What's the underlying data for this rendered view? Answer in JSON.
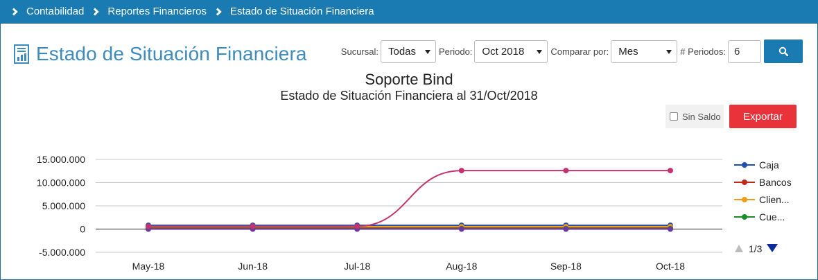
{
  "breadcrumb": [
    "Contabilidad",
    "Reportes Financieros",
    "Estado de Situación Financiera"
  ],
  "page": {
    "title": "Estado de Situación Financiera"
  },
  "filters": {
    "sucursal_label": "Sucursal:",
    "sucursal_value": "Todas",
    "periodo_label": "Periodo:",
    "periodo_value": "Oct 2018",
    "comparar_label": "Comparar por:",
    "comparar_value": "Mes",
    "periodos_label": "# Periodos:",
    "periodos_value": "6"
  },
  "controls": {
    "sin_saldo_label": "Sin Saldo",
    "exportar_label": "Exportar"
  },
  "pagination": {
    "label": "1/3"
  },
  "colors": {
    "accent": "#1a7bb2",
    "export": "#e9323a"
  },
  "chart_data": {
    "type": "line",
    "title": "Soporte Bind",
    "subtitle": "Estado de Situación Financiera al 31/Oct/2018",
    "categories": [
      "May-18",
      "Jun-18",
      "Jul-18",
      "Aug-18",
      "Sep-18",
      "Oct-18"
    ],
    "yticks": [
      "15.000.000",
      "10.000.000",
      "5.000.000",
      "0",
      "-5.000.000"
    ],
    "ytick_values": [
      15000000,
      10000000,
      5000000,
      0,
      -5000000
    ],
    "ylim": [
      -5000000,
      15000000
    ],
    "grid": true,
    "legend_position": "right",
    "series": [
      {
        "name": "Caja",
        "color": "#1f4fb0",
        "values": [
          800000,
          800000,
          800000,
          800000,
          800000,
          800000
        ]
      },
      {
        "name": "Bancos",
        "color": "#c0281b",
        "values": [
          300000,
          300000,
          300000,
          300000,
          300000,
          300000
        ]
      },
      {
        "name": "Clien...",
        "color": "#f29a17",
        "values": [
          500000,
          500000,
          500000,
          500000,
          500000,
          500000
        ]
      },
      {
        "name": "Cue...",
        "color": "#1a8c2a",
        "values": [
          100000,
          100000,
          100000,
          100000,
          100000,
          100000
        ]
      },
      {
        "name": "",
        "color": "#6a3aa0",
        "values": [
          0,
          0,
          0,
          0,
          0,
          0
        ]
      },
      {
        "name": "",
        "color": "#c4336e",
        "values": [
          600000,
          600000,
          600000,
          12600000,
          12600000,
          12600000
        ]
      }
    ]
  }
}
